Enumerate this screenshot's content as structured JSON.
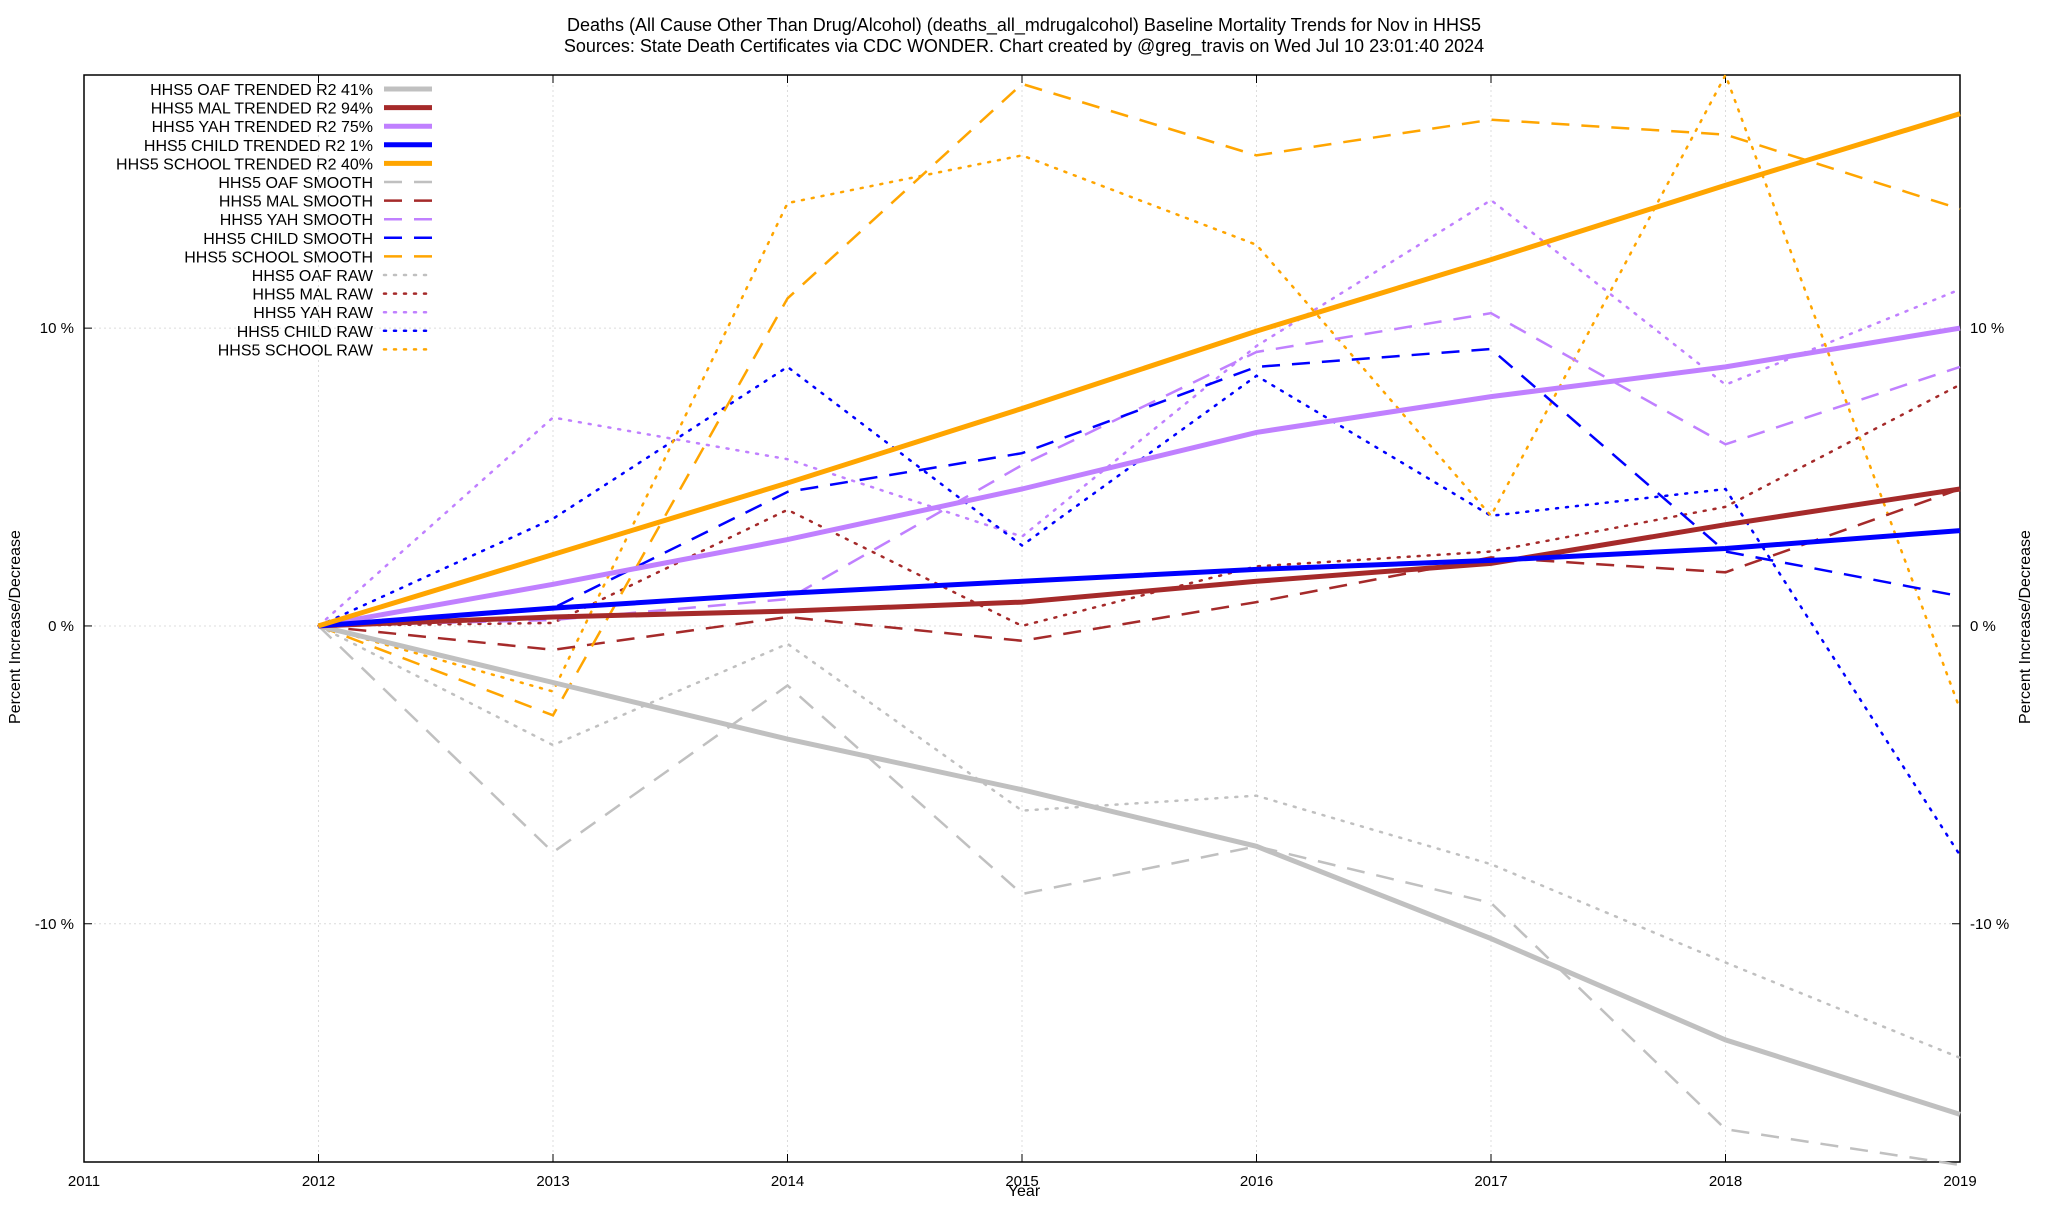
{
  "chart_data": {
    "type": "line",
    "title_line1": "Deaths (All Cause Other Than Drug/Alcohol) (deaths_all_mdrugalcohol)  Baseline Mortality Trends for Nov in HHS5",
    "title_line2": "Sources: State Death Certificates via CDC WONDER.                Chart created by @greg_travis on Wed Jul 10 23:01:40 2024",
    "xlabel": "Year",
    "ylabel_left": "Percent Increase/Decrease",
    "ylabel_right": "Percent Increase/Decrease",
    "xlim": [
      2011,
      2019
    ],
    "ylim": [
      -18,
      18.5
    ],
    "x_ticks": [
      2011,
      2012,
      2013,
      2014,
      2015,
      2016,
      2017,
      2018,
      2019
    ],
    "y_ticks": [
      {
        "value": 10,
        "label": "10 %"
      },
      {
        "value": 0,
        "label": "0 %"
      },
      {
        "value": -10,
        "label": "-10 %"
      }
    ],
    "grid": true,
    "legend_position": "top-left",
    "x": [
      2012,
      2013,
      2014,
      2015,
      2016,
      2017,
      2018,
      2019
    ],
    "series": [
      {
        "name": "HHS5 OAF TRENDED R2  41%",
        "style": "solid",
        "color": "#c0c0c0",
        "values": [
          0,
          -1.9,
          -3.8,
          -5.5,
          -7.4,
          -10.5,
          -13.9,
          -16.4
        ]
      },
      {
        "name": "HHS5 MAL TRENDED R2  94%",
        "style": "solid",
        "color": "#a52a2a",
        "values": [
          0,
          0.3,
          0.5,
          0.8,
          1.5,
          2.1,
          3.4,
          4.6
        ]
      },
      {
        "name": "HHS5 YAH TRENDED R2  75%",
        "style": "solid",
        "color": "#c080ff",
        "values": [
          0,
          1.4,
          2.9,
          4.6,
          6.5,
          7.7,
          8.7,
          10.0
        ]
      },
      {
        "name": "HHS5 CHILD TRENDED R2   1%",
        "style": "solid",
        "color": "#0000ff",
        "values": [
          0,
          0.6,
          1.1,
          1.5,
          1.9,
          2.2,
          2.6,
          3.2
        ]
      },
      {
        "name": "HHS5 SCHOOL TRENDED R2  40%",
        "style": "solid",
        "color": "#ffa500",
        "values": [
          0,
          2.4,
          4.8,
          7.3,
          9.9,
          12.3,
          14.8,
          17.2
        ]
      },
      {
        "name": "HHS5 OAF SMOOTH",
        "style": "dashed",
        "color": "#c0c0c0",
        "values": [
          0,
          -7.6,
          -2.0,
          -9.0,
          -7.4,
          -9.3,
          -16.9,
          -18.1
        ]
      },
      {
        "name": "HHS5 MAL SMOOTH",
        "style": "dashed",
        "color": "#a52a2a",
        "values": [
          0,
          -0.8,
          0.3,
          -0.5,
          0.8,
          2.3,
          1.8,
          4.6
        ]
      },
      {
        "name": "HHS5 YAH SMOOTH",
        "style": "dashed",
        "color": "#c080ff",
        "values": [
          0,
          0.2,
          0.9,
          5.4,
          9.2,
          10.5,
          6.1,
          8.7
        ]
      },
      {
        "name": "HHS5 CHILD SMOOTH",
        "style": "dashed",
        "color": "#0000ff",
        "values": [
          0,
          0.6,
          4.5,
          5.8,
          8.7,
          9.3,
          2.5,
          1.0
        ]
      },
      {
        "name": "HHS5 SCHOOL SMOOTH",
        "style": "dashed",
        "color": "#ffa500",
        "values": [
          0,
          -3.0,
          11.0,
          18.2,
          15.8,
          17.0,
          16.5,
          14.0
        ]
      },
      {
        "name": "HHS5 OAF RAW",
        "style": "dotted",
        "color": "#c0c0c0",
        "values": [
          0,
          -4.0,
          -0.6,
          -6.2,
          -5.7,
          -8.0,
          -11.3,
          -14.5
        ]
      },
      {
        "name": "HHS5 MAL RAW",
        "style": "dotted",
        "color": "#a52a2a",
        "values": [
          0,
          0.1,
          3.9,
          0.0,
          2.0,
          2.5,
          4.0,
          8.1
        ]
      },
      {
        "name": "HHS5 YAH RAW",
        "style": "dotted",
        "color": "#c080ff",
        "values": [
          0,
          7.0,
          5.6,
          3.0,
          9.4,
          14.3,
          8.1,
          11.3
        ]
      },
      {
        "name": "HHS5 CHILD RAW",
        "style": "dotted",
        "color": "#0000ff",
        "values": [
          0,
          3.6,
          8.7,
          2.7,
          8.4,
          3.7,
          4.6,
          -7.7
        ]
      },
      {
        "name": "HHS5 SCHOOL RAW",
        "style": "dotted",
        "color": "#ffa500",
        "values": [
          0,
          -2.2,
          14.2,
          15.8,
          12.8,
          3.7,
          18.5,
          -2.8
        ]
      }
    ]
  }
}
